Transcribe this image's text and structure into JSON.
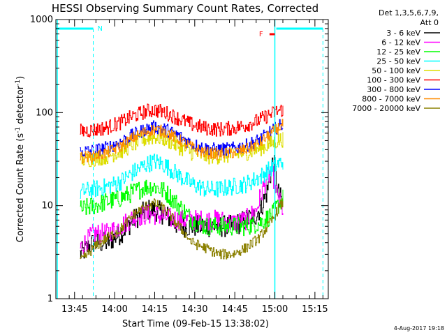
{
  "chart_data": {
    "type": "line",
    "title": "HESSI Observing Summary Count Rates, Corrected",
    "xlabel": "Start Time (09-Feb-15 13:38:02)",
    "ylabel": "Corrected Count Rate (s",
    "ylabel_sup1": "-1",
    "ylabel_mid": " detector",
    "ylabel_sup2": "-1",
    "ylabel_end": ")",
    "yscale": "log",
    "xlim": [
      "13:38",
      "15:20"
    ],
    "ylim": [
      1,
      1000
    ],
    "x_ticks": [
      "13:45",
      "14:00",
      "14:15",
      "14:30",
      "14:45",
      "15:00",
      "15:15"
    ],
    "y_ticks": [
      "1",
      "10",
      "100",
      "1000"
    ],
    "legend": {
      "header1": "Det 1,3,5,6,7,9,",
      "header2": "Att 0",
      "placement": "right",
      "entries": [
        {
          "label": "3 - 6 keV",
          "color": "#000000"
        },
        {
          "label": "6 - 12 keV",
          "color": "#ff00ff"
        },
        {
          "label": "12 - 25 keV",
          "color": "#00ff00"
        },
        {
          "label": "25 - 50 keV",
          "color": "#00ffff"
        },
        {
          "label": "50 - 100 keV",
          "color": "#dddd00"
        },
        {
          "label": "100 - 300 keV",
          "color": "#ff0000"
        },
        {
          "label": "300 - 800 keV",
          "color": "#0000ff"
        },
        {
          "label": "800 - 7000 keV",
          "color": "#ff8c00"
        },
        {
          "label": "7000 - 20000 keV",
          "color": "#8b8000"
        }
      ]
    },
    "annotations": [
      {
        "text": "N",
        "color": "#00ffff"
      },
      {
        "text": "F",
        "color": "#ff0000"
      }
    ],
    "series": [
      {
        "name": "3 - 6 keV",
        "color": "#000000",
        "x": [
          "13:47",
          "13:52",
          "13:57",
          "14:02",
          "14:07",
          "14:12",
          "14:15",
          "14:19",
          "14:24",
          "14:29",
          "14:34",
          "14:39",
          "14:44",
          "14:49",
          "14:53",
          "14:55",
          "14:57",
          "14:58",
          "14:59",
          "15:00",
          "15:01",
          "15:02",
          "15:03",
          "15:03"
        ],
        "y": [
          3,
          4,
          4,
          5,
          7,
          9,
          9,
          8,
          6,
          6,
          6,
          6,
          6,
          7,
          8,
          10,
          14,
          20,
          28,
          26,
          14,
          12,
          10,
          2.3
        ]
      },
      {
        "name": "6 - 12 keV",
        "color": "#ff00ff",
        "x": [
          "13:47",
          "13:52",
          "13:57",
          "14:02",
          "14:07",
          "14:12",
          "14:15",
          "14:19",
          "14:24",
          "14:29",
          "14:34",
          "14:39",
          "14:44",
          "14:49",
          "14:53",
          "14:55",
          "14:57",
          "14:59",
          "15:01",
          "15:03"
        ],
        "y": [
          3.5,
          5,
          5,
          6,
          7.5,
          8,
          8,
          7.5,
          7,
          7,
          7,
          7,
          6.5,
          7,
          9,
          14,
          20,
          23,
          12,
          9
        ]
      },
      {
        "name": "12 - 25 keV",
        "color": "#00ff00",
        "x": [
          "13:47",
          "13:52",
          "13:57",
          "14:02",
          "14:07",
          "14:12",
          "14:15",
          "14:19",
          "14:24",
          "14:29",
          "14:34",
          "14:39",
          "14:44",
          "14:49",
          "14:54",
          "14:59",
          "15:01",
          "15:03"
        ],
        "y": [
          9,
          10,
          11,
          12,
          14,
          16,
          16,
          14,
          10,
          7,
          6,
          6,
          6,
          6,
          6.5,
          8,
          10,
          12
        ]
      },
      {
        "name": "25 - 50 keV",
        "color": "#00ffff",
        "x": [
          "13:47",
          "13:52",
          "13:57",
          "14:02",
          "14:07",
          "14:12",
          "14:15",
          "14:19",
          "14:24",
          "14:29",
          "14:34",
          "14:39",
          "14:44",
          "14:49",
          "14:54",
          "14:59",
          "15:01",
          "15:03"
        ],
        "y": [
          14,
          15,
          16,
          18,
          23,
          28,
          30,
          27,
          21,
          17,
          15,
          15,
          16,
          17,
          20,
          26,
          28,
          30
        ]
      },
      {
        "name": "50 - 100 keV",
        "color": "#dddd00",
        "x": [
          "13:47",
          "13:52",
          "13:57",
          "14:02",
          "14:07",
          "14:12",
          "14:15",
          "14:19",
          "14:24",
          "14:29",
          "14:34",
          "14:39",
          "14:44",
          "14:49",
          "14:54",
          "14:59",
          "15:01",
          "15:03"
        ],
        "y": [
          31,
          32,
          34,
          38,
          46,
          53,
          55,
          52,
          43,
          37,
          34,
          34,
          35,
          37,
          41,
          47,
          50,
          52
        ]
      },
      {
        "name": "100 - 300 keV",
        "color": "#ff0000",
        "x": [
          "13:47",
          "13:52",
          "13:57",
          "14:02",
          "14:07",
          "14:12",
          "14:15",
          "14:19",
          "14:24",
          "14:29",
          "14:34",
          "14:39",
          "14:44",
          "14:49",
          "14:54",
          "14:59",
          "15:01",
          "15:03"
        ],
        "y": [
          63,
          65,
          69,
          78,
          92,
          104,
          107,
          100,
          86,
          74,
          68,
          66,
          68,
          73,
          83,
          98,
          104,
          108
        ]
      },
      {
        "name": "300 - 800 keV",
        "color": "#0000ff",
        "x": [
          "13:47",
          "13:52",
          "13:57",
          "14:02",
          "14:07",
          "14:12",
          "14:15",
          "14:19",
          "14:24",
          "14:29",
          "14:34",
          "14:39",
          "14:44",
          "14:49",
          "14:54",
          "14:59",
          "15:01",
          "15:03"
        ],
        "y": [
          38,
          39,
          42,
          48,
          58,
          67,
          70,
          66,
          56,
          46,
          41,
          40,
          41,
          44,
          51,
          64,
          70,
          75
        ]
      },
      {
        "name": "800 - 7000 keV",
        "color": "#ff8c00",
        "x": [
          "13:47",
          "13:52",
          "13:57",
          "14:02",
          "14:07",
          "14:12",
          "14:15",
          "14:19",
          "14:24",
          "14:29",
          "14:34",
          "14:39",
          "14:44",
          "14:49",
          "14:54",
          "14:59",
          "15:01",
          "15:03"
        ],
        "y": [
          33,
          34,
          37,
          43,
          54,
          63,
          66,
          62,
          51,
          42,
          37,
          36,
          37,
          40,
          47,
          61,
          68,
          74
        ]
      },
      {
        "name": "7000 - 20000 keV",
        "color": "#8b8000",
        "x": [
          "13:47",
          "13:52",
          "13:57",
          "14:02",
          "14:07",
          "14:12",
          "14:15",
          "14:19",
          "14:24",
          "14:29",
          "14:34",
          "14:39",
          "14:44",
          "14:49",
          "14:54",
          "14:59",
          "15:01",
          "15:03"
        ],
        "y": [
          2.5,
          3.5,
          4.5,
          5.5,
          8,
          10,
          10.5,
          9,
          6,
          4,
          3.5,
          3,
          3,
          3.5,
          4.5,
          7,
          9,
          11
        ]
      }
    ],
    "night_interval": [
      "13:38",
      "13:52"
    ],
    "saa_interval": [
      "15:00",
      "15:18"
    ],
    "flare_marker": [
      "14:58",
      "15:00"
    ],
    "timestamp": "4-Aug-2017 19:18"
  }
}
